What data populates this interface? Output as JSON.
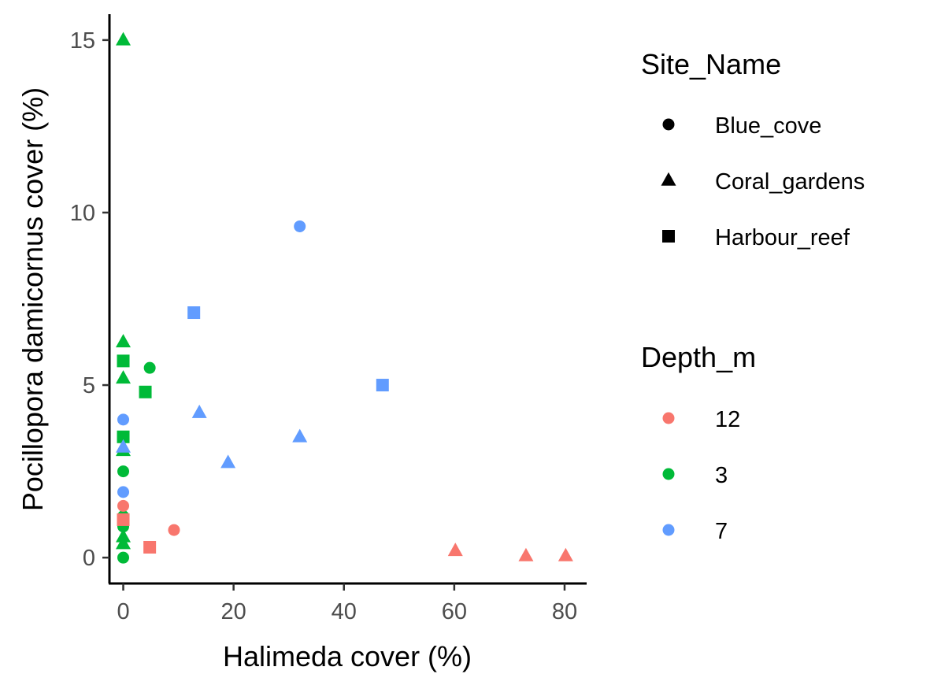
{
  "chart_data": {
    "type": "scatter",
    "xlabel": "Halimeda cover (%)",
    "ylabel": "Pocillopora damicornus cover (%)",
    "xlim": [
      -2.5,
      84
    ],
    "ylim": [
      -0.75,
      15.75
    ],
    "xticks": [
      0,
      20,
      40,
      60,
      80
    ],
    "yticks": [
      0,
      5,
      10,
      15
    ],
    "grid": false,
    "legend_position": "right",
    "shape_legend": {
      "title": "Site_Name",
      "entries": [
        {
          "label": "Blue_cove",
          "shape": "circle"
        },
        {
          "label": "Coral_gardens",
          "shape": "triangle"
        },
        {
          "label": "Harbour_reef",
          "shape": "square"
        }
      ]
    },
    "color_legend": {
      "title": "Depth_m",
      "entries": [
        {
          "label": "12",
          "color": "#F8766D"
        },
        {
          "label": "3",
          "color": "#00BA38"
        },
        {
          "label": "7",
          "color": "#619CFF"
        }
      ]
    },
    "points": [
      {
        "x": 0,
        "y": 15.0,
        "site": "Coral_gardens",
        "depth": "3"
      },
      {
        "x": 0,
        "y": 6.25,
        "site": "Coral_gardens",
        "depth": "3"
      },
      {
        "x": 0,
        "y": 5.2,
        "site": "Coral_gardens",
        "depth": "3"
      },
      {
        "x": 0,
        "y": 3.1,
        "site": "Coral_gardens",
        "depth": "3"
      },
      {
        "x": 0,
        "y": 0.6,
        "site": "Coral_gardens",
        "depth": "3"
      },
      {
        "x": 0,
        "y": 0.4,
        "site": "Coral_gardens",
        "depth": "3"
      },
      {
        "x": 0,
        "y": 5.7,
        "site": "Harbour_reef",
        "depth": "3"
      },
      {
        "x": 0,
        "y": 3.5,
        "site": "Harbour_reef",
        "depth": "3"
      },
      {
        "x": 4,
        "y": 4.8,
        "site": "Harbour_reef",
        "depth": "3"
      },
      {
        "x": 4.8,
        "y": 5.5,
        "site": "Blue_cove",
        "depth": "3"
      },
      {
        "x": 0,
        "y": 2.5,
        "site": "Blue_cove",
        "depth": "3"
      },
      {
        "x": 0,
        "y": 1.2,
        "site": "Blue_cove",
        "depth": "3"
      },
      {
        "x": 0,
        "y": 0.9,
        "site": "Blue_cove",
        "depth": "3"
      },
      {
        "x": 0,
        "y": 0.0,
        "site": "Blue_cove",
        "depth": "3"
      },
      {
        "x": 0,
        "y": 4.0,
        "site": "Blue_cove",
        "depth": "7"
      },
      {
        "x": 0,
        "y": 1.9,
        "site": "Blue_cove",
        "depth": "7"
      },
      {
        "x": 0,
        "y": 3.2,
        "site": "Coral_gardens",
        "depth": "7"
      },
      {
        "x": 32,
        "y": 9.6,
        "site": "Blue_cove",
        "depth": "7"
      },
      {
        "x": 12.8,
        "y": 7.1,
        "site": "Harbour_reef",
        "depth": "7"
      },
      {
        "x": 47,
        "y": 5.0,
        "site": "Harbour_reef",
        "depth": "7"
      },
      {
        "x": 13.8,
        "y": 4.2,
        "site": "Coral_gardens",
        "depth": "7"
      },
      {
        "x": 32,
        "y": 3.5,
        "site": "Coral_gardens",
        "depth": "7"
      },
      {
        "x": 19,
        "y": 2.75,
        "site": "Coral_gardens",
        "depth": "7"
      },
      {
        "x": 0,
        "y": 1.5,
        "site": "Blue_cove",
        "depth": "12"
      },
      {
        "x": 0,
        "y": 1.1,
        "site": "Harbour_reef",
        "depth": "12"
      },
      {
        "x": 9.2,
        "y": 0.8,
        "site": "Blue_cove",
        "depth": "12"
      },
      {
        "x": 4.8,
        "y": 0.3,
        "site": "Harbour_reef",
        "depth": "12"
      },
      {
        "x": 60.2,
        "y": 0.2,
        "site": "Coral_gardens",
        "depth": "12"
      },
      {
        "x": 73,
        "y": 0.05,
        "site": "Coral_gardens",
        "depth": "12"
      },
      {
        "x": 80.2,
        "y": 0.05,
        "site": "Coral_gardens",
        "depth": "12"
      }
    ]
  }
}
